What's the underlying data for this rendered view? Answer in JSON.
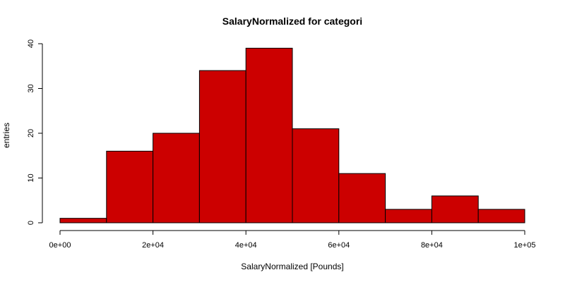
{
  "chart_data": {
    "type": "bar",
    "title": "SalaryNormalized for categori",
    "xlabel": "SalaryNormalized [Pounds]",
    "ylabel": "entries",
    "bins": [
      {
        "from": 0,
        "to": 10000,
        "count": 1
      },
      {
        "from": 10000,
        "to": 20000,
        "count": 16
      },
      {
        "from": 20000,
        "to": 30000,
        "count": 20
      },
      {
        "from": 30000,
        "to": 40000,
        "count": 34
      },
      {
        "from": 40000,
        "to": 50000,
        "count": 39
      },
      {
        "from": 50000,
        "to": 60000,
        "count": 21
      },
      {
        "from": 60000,
        "to": 70000,
        "count": 11
      },
      {
        "from": 70000,
        "to": 80000,
        "count": 3
      },
      {
        "from": 80000,
        "to": 90000,
        "count": 6
      },
      {
        "from": 90000,
        "to": 100000,
        "count": 3
      }
    ],
    "xlim": [
      0,
      100000
    ],
    "ylim": [
      0,
      40
    ],
    "x_ticks": [
      {
        "value": 0,
        "label": "0e+00"
      },
      {
        "value": 20000,
        "label": "2e+04"
      },
      {
        "value": 40000,
        "label": "4e+04"
      },
      {
        "value": 60000,
        "label": "6e+04"
      },
      {
        "value": 80000,
        "label": "8e+04"
      },
      {
        "value": 100000,
        "label": "1e+05"
      }
    ],
    "y_ticks": [
      {
        "value": 0,
        "label": "0"
      },
      {
        "value": 10,
        "label": "10"
      },
      {
        "value": 20,
        "label": "20"
      },
      {
        "value": 30,
        "label": "30"
      },
      {
        "value": 40,
        "label": "40"
      }
    ],
    "bar_color": "#cc0000",
    "bar_border_color": "#000000",
    "grid": false,
    "legend": "none"
  }
}
